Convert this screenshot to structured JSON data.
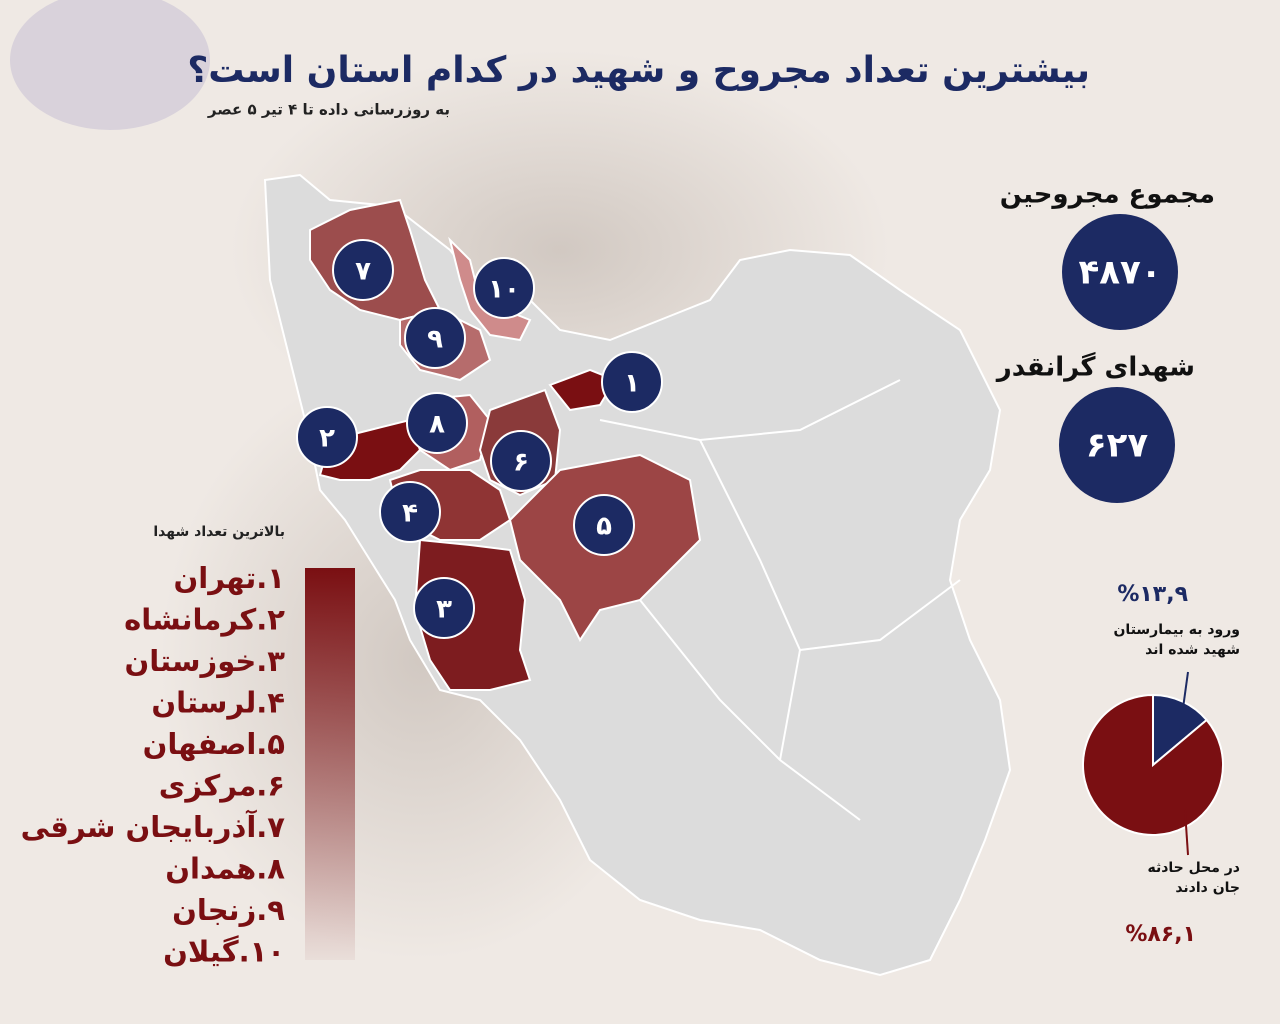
{
  "header": {
    "title": "بیشترین تعداد مجروح و شهید در کدام استان است؟",
    "subtitle": "به روزرسانی داده تا ۴ تیر ۵ عصر"
  },
  "stats": {
    "injured_label": "مجموع مجروحین",
    "injured_value": "۴۸۷۰",
    "martyrs_label": "شهدای گرانقدر",
    "martyrs_value": "۶۲۷"
  },
  "ranking": {
    "title": "بالاترین تعداد شهدا",
    "items": [
      "۱.تهران",
      "۲.کرمانشاه",
      "۳.خوزستان",
      "۴.لرستان",
      "۵.اصفهان",
      "۶.مرکزی",
      "۷.آذربایجان شرقی",
      "۸.همدان",
      "۹.زنجان",
      "۱۰.گیلان"
    ]
  },
  "map": {
    "markers": [
      "۱",
      "۲",
      "۳",
      "۴",
      "۵",
      "۶",
      "۷",
      "۸",
      "۹",
      "۱۰"
    ]
  },
  "chart_data": {
    "type": "pie",
    "categories": [
      "ورود به بیمارستان شهید شده اند",
      "در محل حادثه جان دادند"
    ],
    "values": [
      13.9,
      86.1
    ],
    "value_labels": [
      "%۱۳,۹",
      "%۸۶,۱"
    ],
    "colors": [
      "#1c2a63",
      "#7a0f12"
    ]
  }
}
